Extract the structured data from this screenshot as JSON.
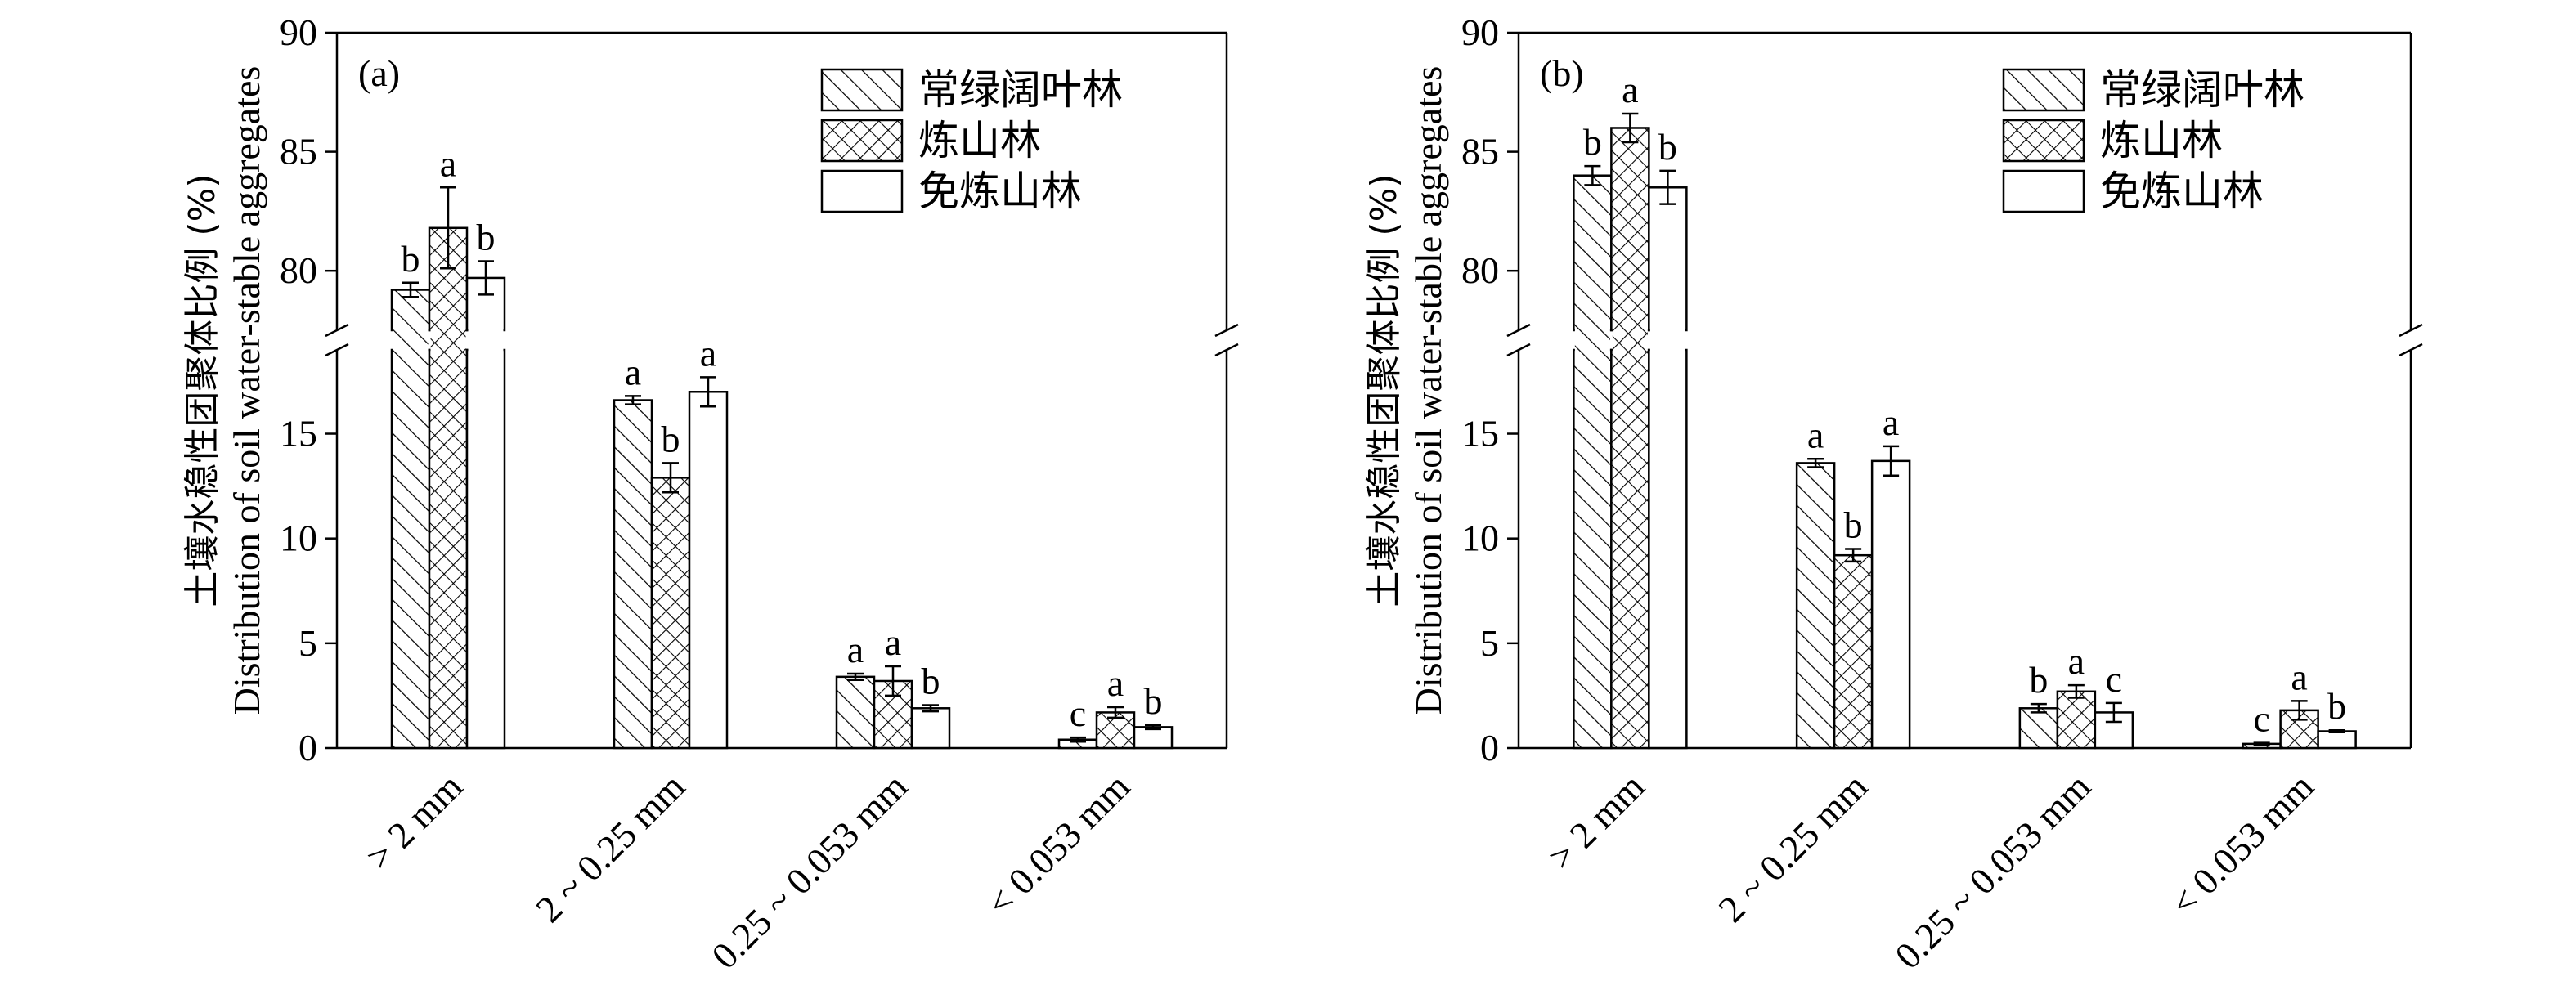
{
  "chart_data": [
    {
      "type": "bar",
      "panel_label": "(a)",
      "categories": [
        "> 2 mm",
        "2 ~ 0.25 mm",
        "0.25 ~ 0.053 mm",
        "< 0.053 mm"
      ],
      "series": [
        {
          "name": "常绿阔叶林",
          "pattern": "hatch",
          "values": [
            79.2,
            16.6,
            3.4,
            0.4
          ],
          "errors": [
            0.3,
            0.2,
            0.15,
            0.1
          ],
          "labels": [
            "b",
            "a",
            "a",
            "c"
          ]
        },
        {
          "name": "炼山林",
          "pattern": "crosshatch",
          "values": [
            81.8,
            12.9,
            3.2,
            1.7
          ],
          "errors": [
            1.7,
            0.7,
            0.7,
            0.25
          ],
          "labels": [
            "a",
            "b",
            "a",
            "a"
          ]
        },
        {
          "name": "免炼山林",
          "pattern": "none",
          "values": [
            79.7,
            17.0,
            1.9,
            1.0
          ],
          "errors": [
            0.7,
            0.7,
            0.15,
            0.1
          ],
          "labels": [
            "b",
            "a",
            "b",
            "b"
          ]
        }
      ],
      "ylabel_cn": "土壤水稳性团聚体比例 (%)",
      "ylabel_en": "Distribution of soil water-stable aggregates",
      "yaxis_lower": {
        "range": [
          0,
          19
        ],
        "ticks": [
          "0",
          "5",
          "10",
          "15"
        ]
      },
      "yaxis_upper": {
        "range": [
          77.5,
          90
        ],
        "ticks": [
          "80",
          "85",
          "90"
        ]
      },
      "axis_break": true,
      "legend": "top-right",
      "grid": false
    },
    {
      "type": "bar",
      "panel_label": "(b)",
      "categories": [
        "> 2 mm",
        "2 ~ 0.25 mm",
        "0.25 ~ 0.053 mm",
        "< 0.053 mm"
      ],
      "series": [
        {
          "name": "常绿阔叶林",
          "pattern": "hatch",
          "values": [
            84.0,
            13.6,
            1.9,
            0.2
          ],
          "errors": [
            0.4,
            0.2,
            0.2,
            0.05
          ],
          "labels": [
            "b",
            "a",
            "b",
            "c"
          ]
        },
        {
          "name": "炼山林",
          "pattern": "crosshatch",
          "values": [
            86.0,
            9.2,
            2.7,
            1.8
          ],
          "errors": [
            0.6,
            0.3,
            0.3,
            0.45
          ],
          "labels": [
            "a",
            "b",
            "a",
            "a"
          ]
        },
        {
          "name": "免炼山林",
          "pattern": "none",
          "values": [
            83.5,
            13.7,
            1.7,
            0.8
          ],
          "errors": [
            0.7,
            0.7,
            0.45,
            0.05
          ],
          "labels": [
            "b",
            "a",
            "c",
            "b"
          ]
        }
      ],
      "ylabel_cn": "土壤水稳性团聚体比例 (%)",
      "ylabel_en": "Distribution of soil water-stable aggregates",
      "yaxis_lower": {
        "range": [
          0,
          19
        ],
        "ticks": [
          "0",
          "5",
          "10",
          "15"
        ]
      },
      "yaxis_upper": {
        "range": [
          77.5,
          90
        ],
        "ticks": [
          "80",
          "85",
          "90"
        ]
      },
      "axis_break": true,
      "legend": "top-right",
      "grid": false
    }
  ]
}
